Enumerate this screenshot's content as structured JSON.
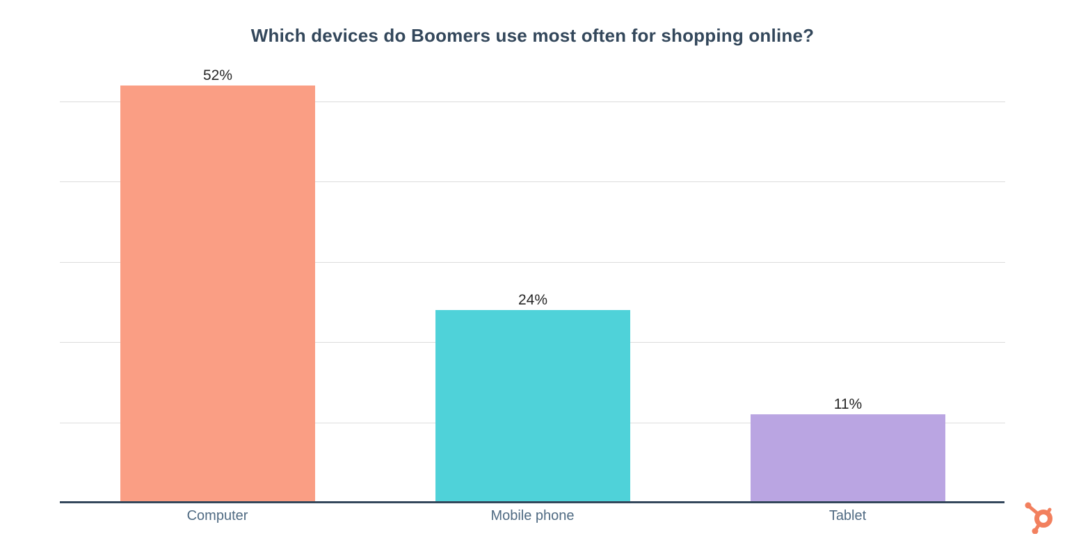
{
  "chart_data": {
    "type": "bar",
    "title": "Which devices do Boomers use most often for shopping online?",
    "categories": [
      "Computer",
      "Mobile phone",
      "Tablet"
    ],
    "values": [
      52,
      24,
      11
    ],
    "value_labels": [
      "52%",
      "24%",
      "11%"
    ],
    "bar_colors": [
      "#FA9E84",
      "#4FD2D9",
      "#BAA5E2"
    ],
    "xlabel": "",
    "ylabel": "",
    "ylim": [
      0,
      52
    ],
    "gridline_values": [
      10,
      20,
      30,
      40,
      50
    ],
    "grid": true,
    "legend_position": "none",
    "y_tick_labels_visible": false
  },
  "style": {
    "title_color": "#33475B",
    "axis_line_color": "#33475B",
    "gridline_color": "#DCDCDC",
    "value_label_color": "#262626",
    "category_label_color": "#4F6A82",
    "background_color": "#FFFFFF",
    "logo_color": "#F2805E"
  },
  "branding": {
    "logo_name": "hubspot-sprocket-icon"
  }
}
